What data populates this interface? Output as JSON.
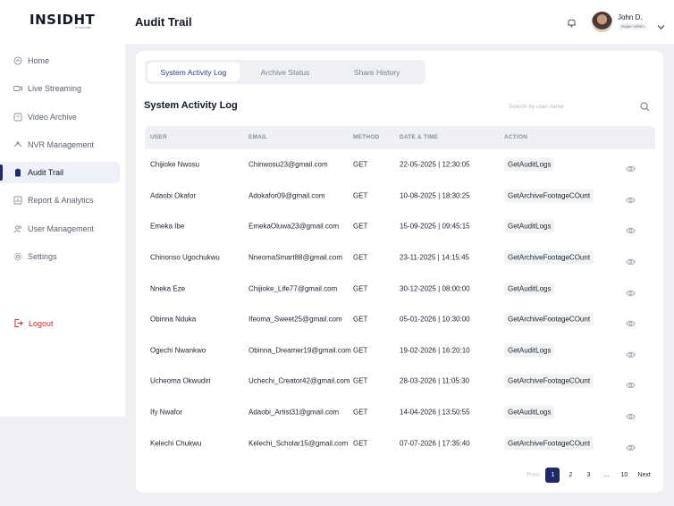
{
  "brand": {
    "logo": "INSIDHT",
    "tagline": "by FACTORY"
  },
  "sidebar": {
    "items": [
      {
        "label": "Home",
        "icon": "home-icon"
      },
      {
        "label": "Live Streaming",
        "icon": "video-camera-icon"
      },
      {
        "label": "Video Archive",
        "icon": "archive-icon"
      },
      {
        "label": "NVR Management",
        "icon": "network-icon"
      },
      {
        "label": "Audit Trail",
        "icon": "clipboard-icon",
        "active": true
      },
      {
        "label": "Report & Analytics",
        "icon": "chart-icon"
      },
      {
        "label": "User Management",
        "icon": "users-icon"
      },
      {
        "label": "Settings",
        "icon": "gear-icon"
      }
    ],
    "logout": "Logout"
  },
  "header": {
    "title": "Audit Trail",
    "user": {
      "name": "John D.",
      "role": "Super Admin"
    }
  },
  "tabs": [
    "System Activity Log",
    "Archive Status",
    "Share History"
  ],
  "main": {
    "section_title": "System Activity Log",
    "search_placeholder": "Search by user name"
  },
  "table": {
    "columns": [
      "USER",
      "EMAIL",
      "METHOD",
      "DATE & TIME",
      "ACTION"
    ],
    "rows": [
      {
        "user": "Chijioke Nwosu",
        "email": "Chinwosu23@gmail.com",
        "method": "GET",
        "datetime": "22-05-2025 | 12:30:05",
        "action": "GetAuditLogs"
      },
      {
        "user": "Adaobi Okafor",
        "email": "Adokafor09@gmail.com",
        "method": "GET",
        "datetime": "10-08-2025 | 18:30:25",
        "action": "GetArchiveFootageCOunt"
      },
      {
        "user": "Emeka Ibe",
        "email": "EmekaOluwa23@gmail.com",
        "method": "GET",
        "datetime": "15-09-2025 | 09:45:15",
        "action": "GetAuditLogs"
      },
      {
        "user": "Chinonso Ugochukwu",
        "email": "NneomaSmart88@gmail.com",
        "method": "GET",
        "datetime": "23-11-2025 | 14:15:45",
        "action": "GetArchiveFootageCOunt"
      },
      {
        "user": "Nneka Eze",
        "email": "Chijioke_Life77@gmail.com",
        "method": "GET",
        "datetime": "30-12-2025 | 08:00:00",
        "action": "GetAuditLogs"
      },
      {
        "user": "Obinna Nduka",
        "email": "Ifeoma_Sweet25@gmail.com",
        "method": "GET",
        "datetime": "05-01-2026 | 10:30:00",
        "action": "GetArchiveFootageCOunt"
      },
      {
        "user": "Ogechi Nwankwo",
        "email": "Obinna_Dreamer19@gmail.com",
        "method": "GET",
        "datetime": "19-02-2026 | 16:20:10",
        "action": "GetAuditLogs"
      },
      {
        "user": "Ucheoma Okwudiri",
        "email": "Uchechi_Creator42@gmail.com",
        "method": "GET",
        "datetime": "28-03-2026 | 11:05:30",
        "action": "GetArchiveFootageCOunt"
      },
      {
        "user": "Ify Nwafor",
        "email": "Adaobi_Artist31@gmail.com",
        "method": "GET",
        "datetime": "14-04-2026 | 13:50:55",
        "action": "GetAuditLogs"
      },
      {
        "user": "Kelechi Chukwu",
        "email": "Kelechi_Scholar15@gmail.com",
        "method": "GET",
        "datetime": "07-07-2026 | 17:35:40",
        "action": "GetArchiveFootageCOunt"
      }
    ]
  },
  "pagination": {
    "prev": "Prev",
    "pages": [
      "1",
      "2",
      "3",
      "...",
      "10"
    ],
    "current": "1",
    "next": "Next"
  },
  "colors": {
    "accent": "#1f2a6b",
    "logout": "#dc2626",
    "background": "#eef0f4"
  }
}
